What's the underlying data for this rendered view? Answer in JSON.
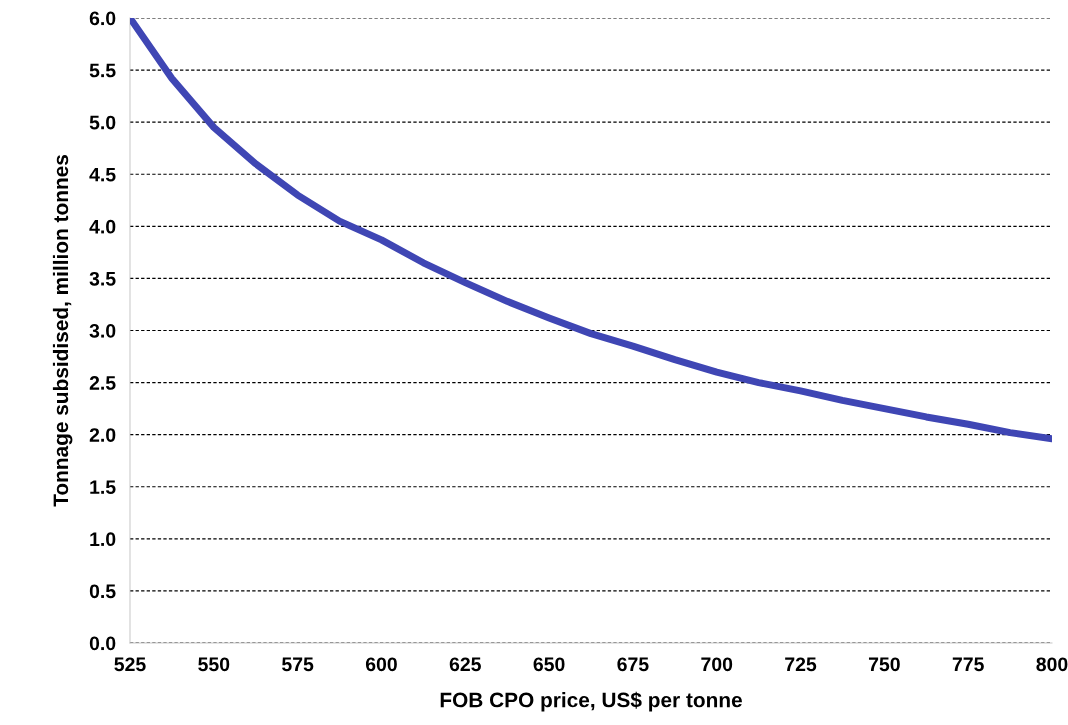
{
  "chart_data": {
    "type": "line",
    "xlabel": "FOB CPO price, US$ per tonne",
    "ylabel": "Tonnage subsidised, million tonnes",
    "x": [
      525,
      537.5,
      550,
      562.5,
      575,
      587.5,
      600,
      612.5,
      625,
      637.5,
      650,
      662.5,
      675,
      687.5,
      700,
      712.5,
      725,
      737.5,
      750,
      762.5,
      775,
      787.5,
      800
    ],
    "series": [
      {
        "color": "#3f46b4",
        "values": [
          6.0,
          5.42,
          4.95,
          4.6,
          4.3,
          4.05,
          3.87,
          3.65,
          3.46,
          3.28,
          3.12,
          2.97,
          2.85,
          2.72,
          2.6,
          2.5,
          2.42,
          2.33,
          2.25,
          2.17,
          2.1,
          2.02,
          1.96
        ]
      }
    ],
    "xlim": [
      525,
      800
    ],
    "xticks": [
      525,
      550,
      575,
      600,
      625,
      650,
      675,
      700,
      725,
      750,
      775,
      800
    ],
    "ylim": [
      0,
      6.0
    ],
    "yticks": [
      {
        "value": 0,
        "label": "0.0"
      },
      {
        "value": 0.5,
        "label": "0.5"
      },
      {
        "value": 1,
        "label": "1.0"
      },
      {
        "value": 1.5,
        "label": "1.5"
      },
      {
        "value": 2,
        "label": "2.0"
      },
      {
        "value": 2.5,
        "label": "2.5"
      },
      {
        "value": 3,
        "label": "3.0"
      },
      {
        "value": 3.5,
        "label": "3.5"
      },
      {
        "value": 4,
        "label": "4.0"
      },
      {
        "value": 4.5,
        "label": "4.5"
      },
      {
        "value": 5,
        "label": "5.0"
      },
      {
        "value": 5.5,
        "label": "5.5"
      },
      {
        "value": 6,
        "label": "6.0"
      }
    ],
    "grid": "y",
    "line_style": "solid",
    "marker": "none"
  }
}
